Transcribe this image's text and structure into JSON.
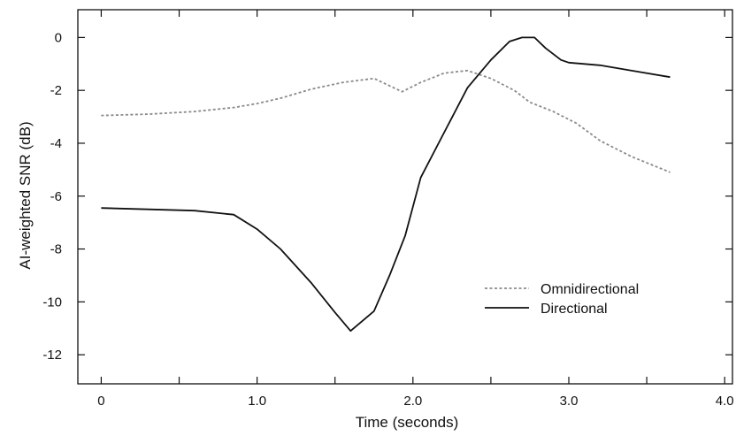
{
  "chart_data": {
    "type": "line",
    "title": "",
    "xlabel": "Time (seconds)",
    "ylabel": "AI-weighted SNR (dB)",
    "xlim": [
      -0.15,
      4.05
    ],
    "ylim": [
      -13.1,
      1.05
    ],
    "xticks": [
      0,
      1,
      2,
      3,
      4
    ],
    "xtick_labels": [
      "0",
      "1.0",
      "2.0",
      "3.0",
      "4.0"
    ],
    "yticks": [
      0,
      -2,
      -4,
      -6,
      -8,
      -10,
      -12
    ],
    "ytick_labels": [
      "0",
      "-2",
      "-4",
      "-6",
      "-8",
      "-10",
      "-12"
    ],
    "grid": false,
    "legend_position": "lower-right",
    "series": [
      {
        "name": "Omnidirectional",
        "color": "#8a8a8a",
        "style": "dashed",
        "x": [
          0.0,
          0.3,
          0.6,
          0.85,
          1.0,
          1.15,
          1.35,
          1.55,
          1.75,
          1.93,
          2.05,
          2.2,
          2.35,
          2.5,
          2.65,
          2.75,
          2.9,
          3.05,
          3.2,
          3.4,
          3.65
        ],
        "y": [
          -2.95,
          -2.9,
          -2.8,
          -2.65,
          -2.5,
          -2.3,
          -1.95,
          -1.7,
          -1.55,
          -2.05,
          -1.7,
          -1.35,
          -1.25,
          -1.55,
          -2.0,
          -2.45,
          -2.8,
          -3.25,
          -3.9,
          -4.5,
          -5.1
        ]
      },
      {
        "name": "Directional",
        "color": "#111111",
        "style": "solid",
        "x": [
          0.0,
          0.3,
          0.6,
          0.85,
          1.0,
          1.15,
          1.35,
          1.5,
          1.6,
          1.75,
          1.85,
          1.95,
          2.05,
          2.2,
          2.35,
          2.5,
          2.62,
          2.7,
          2.78,
          2.85,
          2.95,
          3.0,
          3.2,
          3.45,
          3.65
        ],
        "y": [
          -6.45,
          -6.5,
          -6.55,
          -6.7,
          -7.25,
          -8.0,
          -9.3,
          -10.4,
          -11.1,
          -10.35,
          -9.0,
          -7.5,
          -5.3,
          -3.6,
          -1.9,
          -0.85,
          -0.15,
          0.0,
          0.0,
          -0.4,
          -0.85,
          -0.95,
          -1.05,
          -1.3,
          -1.5
        ]
      }
    ]
  }
}
